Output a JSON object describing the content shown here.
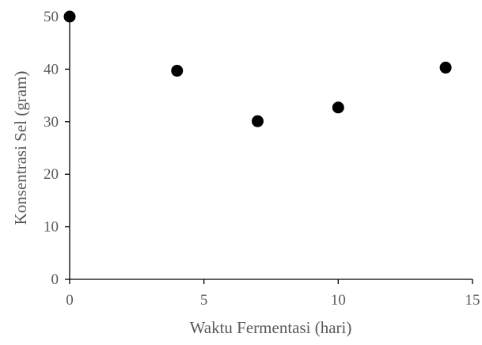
{
  "chart_data": {
    "type": "scatter",
    "title": "",
    "xlabel": "Waktu Fermentasi (hari)",
    "ylabel": "Konsentrasi Sel (gram)",
    "xlim": [
      0,
      15
    ],
    "ylim": [
      0,
      50
    ],
    "x_ticks": [
      0,
      5,
      10,
      15
    ],
    "y_ticks": [
      0,
      10,
      20,
      30,
      40,
      50
    ],
    "x_tick_labels": [
      "0",
      "5",
      "10",
      "15"
    ],
    "y_tick_labels": [
      "0",
      "10",
      "20",
      "30",
      "40",
      "50"
    ],
    "grid": false,
    "legend": "none",
    "marker_color": "#000000",
    "axis_color": "#000000",
    "points": [
      {
        "x": 0,
        "y": 50
      },
      {
        "x": 4,
        "y": 39.7
      },
      {
        "x": 7,
        "y": 30.1
      },
      {
        "x": 10,
        "y": 32.7
      },
      {
        "x": 14,
        "y": 40.3
      }
    ]
  }
}
